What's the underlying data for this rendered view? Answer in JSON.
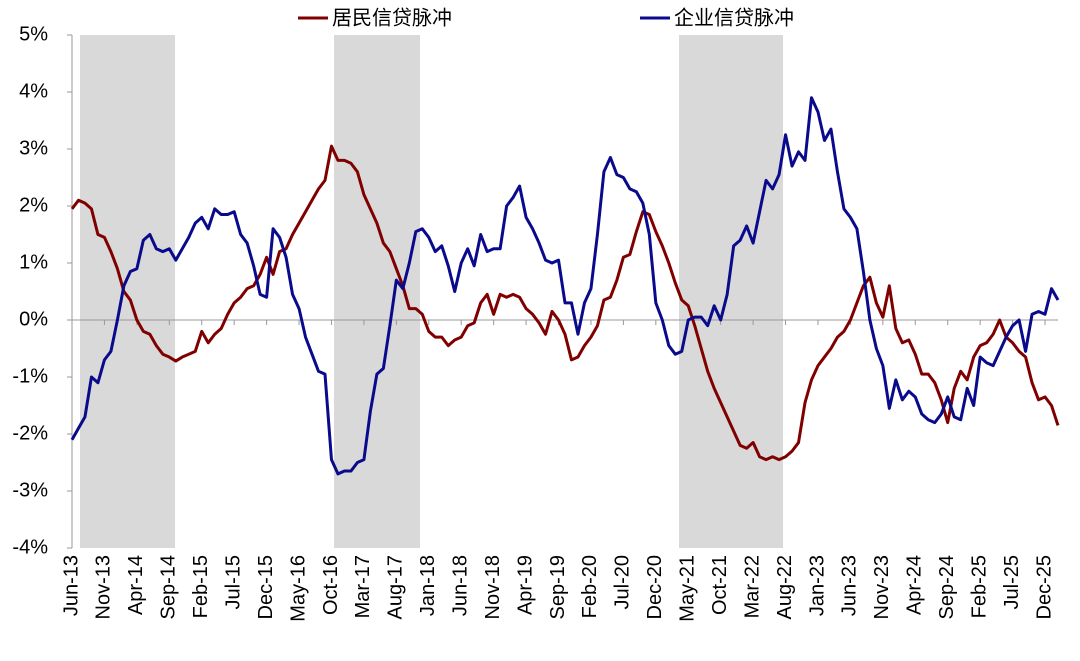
{
  "chart_data": {
    "type": "line",
    "categories": [
      "Jun-13",
      null,
      null,
      null,
      null,
      "Nov-13",
      null,
      null,
      null,
      null,
      "Apr-14",
      null,
      null,
      null,
      null,
      "Sep-14",
      null,
      null,
      null,
      null,
      "Feb-15",
      null,
      null,
      null,
      null,
      "Jul-15",
      null,
      null,
      null,
      null,
      "Dec-15",
      null,
      null,
      null,
      null,
      "May-16",
      null,
      null,
      null,
      null,
      "Oct-16",
      null,
      null,
      null,
      null,
      "Mar-17",
      null,
      null,
      null,
      null,
      "Aug-17",
      null,
      null,
      null,
      null,
      "Jan-18",
      null,
      null,
      null,
      null,
      "Jun-18",
      null,
      null,
      null,
      null,
      "Nov-18",
      null,
      null,
      null,
      null,
      "Apr-19",
      null,
      null,
      null,
      null,
      "Sep-19",
      null,
      null,
      null,
      null,
      "Feb-20",
      null,
      null,
      null,
      null,
      "Jul-20",
      null,
      null,
      null,
      null,
      "Dec-20",
      null,
      null,
      null,
      null,
      "May-21",
      null,
      null,
      null,
      null,
      "Oct-21",
      null,
      null,
      null,
      null,
      "Mar-22",
      null,
      null,
      null,
      null,
      "Aug-22",
      null,
      null,
      null,
      null,
      "Jan-23",
      null,
      null,
      null,
      null,
      "Jun-23",
      null,
      null,
      null,
      null,
      "Nov-23",
      null,
      null,
      null,
      null,
      "Apr-24",
      null,
      null,
      null,
      null,
      "Sep-24",
      null,
      null,
      null,
      null,
      "Feb-25",
      null,
      null,
      null,
      null,
      "Jul-25",
      null,
      null,
      null,
      null,
      "Dec-25",
      null,
      null
    ],
    "series": [
      {
        "name": "居民信贷脉冲",
        "color": "#800000",
        "values": [
          1.95,
          2.1,
          2.05,
          1.95,
          1.5,
          1.45,
          1.2,
          0.9,
          0.5,
          0.35,
          0.0,
          -0.2,
          -0.25,
          -0.45,
          -0.6,
          -0.65,
          -0.72,
          -0.65,
          -0.6,
          -0.55,
          -0.2,
          -0.4,
          -0.25,
          -0.15,
          0.1,
          0.3,
          0.4,
          0.55,
          0.6,
          0.8,
          1.1,
          0.8,
          1.2,
          1.25,
          1.5,
          1.7,
          1.9,
          2.1,
          2.3,
          2.45,
          3.05,
          2.8,
          2.8,
          2.75,
          2.6,
          2.2,
          1.95,
          1.7,
          1.35,
          1.2,
          0.9,
          0.6,
          0.2,
          0.2,
          0.1,
          -0.2,
          -0.3,
          -0.3,
          -0.45,
          -0.35,
          -0.3,
          -0.1,
          -0.05,
          0.3,
          0.45,
          0.1,
          0.45,
          0.4,
          0.45,
          0.4,
          0.2,
          0.1,
          -0.05,
          -0.25,
          0.15,
          0.0,
          -0.25,
          -0.7,
          -0.65,
          -0.45,
          -0.3,
          -0.1,
          0.35,
          0.4,
          0.7,
          1.1,
          1.15,
          1.55,
          1.9,
          1.85,
          1.55,
          1.3,
          1.0,
          0.65,
          0.35,
          0.25,
          -0.1,
          -0.5,
          -0.9,
          -1.2,
          -1.45,
          -1.7,
          -1.95,
          -2.2,
          -2.25,
          -2.15,
          -2.4,
          -2.45,
          -2.4,
          -2.45,
          -2.4,
          -2.3,
          -2.15,
          -1.45,
          -1.05,
          -0.8,
          -0.65,
          -0.5,
          -0.3,
          -0.2,
          0.0,
          0.3,
          0.6,
          0.75,
          0.3,
          0.05,
          0.6,
          -0.15,
          -0.4,
          -0.35,
          -0.6,
          -0.95,
          -0.95,
          -1.1,
          -1.4,
          -1.8,
          -1.2,
          -0.9,
          -1.05,
          -0.65,
          -0.45,
          -0.4,
          -0.25,
          0.0,
          -0.3,
          -0.4,
          -0.55,
          -0.65,
          -1.1,
          -1.4,
          -1.35,
          -1.5,
          -1.85
        ]
      },
      {
        "name": "企业信贷脉冲",
        "color": "#0a0a8c",
        "values": [
          -2.1,
          -1.9,
          -1.7,
          -1.0,
          -1.1,
          -0.7,
          -0.55,
          0.0,
          0.6,
          0.85,
          0.9,
          1.4,
          1.5,
          1.25,
          1.2,
          1.25,
          1.05,
          1.25,
          1.45,
          1.7,
          1.8,
          1.6,
          1.95,
          1.85,
          1.85,
          1.9,
          1.5,
          1.35,
          0.95,
          0.45,
          0.4,
          1.6,
          1.45,
          1.1,
          0.45,
          0.2,
          -0.3,
          -0.6,
          -0.9,
          -0.95,
          -2.45,
          -2.7,
          -2.65,
          -2.65,
          -2.5,
          -2.45,
          -1.6,
          -0.95,
          -0.85,
          -0.1,
          0.7,
          0.55,
          1.0,
          1.55,
          1.6,
          1.45,
          1.2,
          1.3,
          0.95,
          0.5,
          1.0,
          1.25,
          0.95,
          1.5,
          1.2,
          1.25,
          1.25,
          2.0,
          2.15,
          2.35,
          1.8,
          1.6,
          1.35,
          1.05,
          1.0,
          1.05,
          0.3,
          0.3,
          -0.25,
          0.3,
          0.55,
          1.5,
          2.6,
          2.85,
          2.55,
          2.5,
          2.3,
          2.25,
          2.05,
          1.5,
          0.3,
          0.0,
          -0.45,
          -0.6,
          -0.55,
          0.0,
          0.05,
          0.05,
          -0.1,
          0.25,
          0.0,
          0.45,
          1.3,
          1.4,
          1.65,
          1.35,
          1.9,
          2.45,
          2.3,
          2.55,
          3.25,
          2.7,
          2.95,
          2.8,
          3.9,
          3.65,
          3.15,
          3.35,
          2.6,
          1.95,
          1.8,
          1.6,
          0.85,
          0.0,
          -0.5,
          -0.8,
          -1.55,
          -1.05,
          -1.4,
          -1.25,
          -1.35,
          -1.65,
          -1.75,
          -1.8,
          -1.65,
          -1.35,
          -1.7,
          -1.75,
          -1.2,
          -1.5,
          -0.65,
          -0.75,
          -0.8,
          -0.55,
          -0.3,
          -0.1,
          0.0,
          -0.55,
          0.1,
          0.15,
          0.1,
          0.55,
          0.35
        ]
      }
    ],
    "ylim": [
      -4,
      5
    ],
    "yticks": [
      {
        "value": -4,
        "label": "-4%"
      },
      {
        "value": -3,
        "label": "-3%"
      },
      {
        "value": -2,
        "label": "-2%"
      },
      {
        "value": -1,
        "label": "-1%"
      },
      {
        "value": 0,
        "label": "0%"
      },
      {
        "value": 1,
        "label": "1%"
      },
      {
        "value": 2,
        "label": "2%"
      },
      {
        "value": 3,
        "label": "3%"
      },
      {
        "value": 4,
        "label": "4%"
      },
      {
        "value": 5,
        "label": "5%"
      }
    ],
    "legend": "top"
  }
}
